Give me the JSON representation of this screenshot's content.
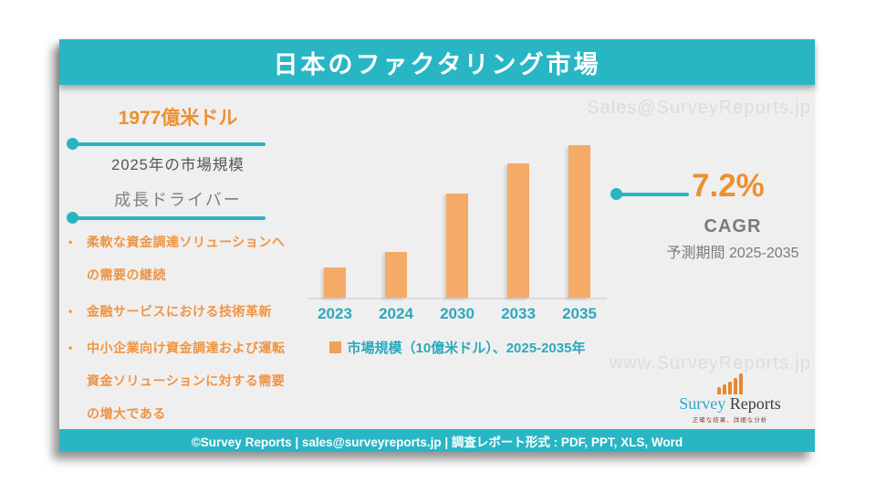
{
  "theme": {
    "teal": "#29b6c4",
    "orange_text": "#ed9030",
    "orange_bullet": "#ef9443",
    "bar_color": "#f4ab67",
    "gray_text": "#7a7a7a",
    "dark_text": "#565656",
    "watermark_color": "#d9dce2",
    "slide_bg": "#f0efef"
  },
  "header": {
    "title": "日本のファクタリング市場"
  },
  "watermarks": {
    "top": "Sales@SurveyReports.jp",
    "bottom": "www.SurveyReports.jp"
  },
  "left_panel": {
    "market_value": "1977億米ドル",
    "market_caption": "2025年の市場規模",
    "drivers_heading": "成長ドライバー",
    "bullet_char": "•",
    "drivers": [
      {
        "lines": [
          "柔軟な資金調達ソリューションへ",
          "の需要の継続"
        ]
      },
      {
        "lines": [
          "金融サービスにおける技術革新"
        ]
      },
      {
        "lines": [
          "中小企業向け資金調達および運転",
          "資金ソリューションに対する需要",
          "の増大である"
        ]
      }
    ]
  },
  "cagr": {
    "value": "7.2%",
    "label": "CAGR",
    "period": "予測期間 2025-2035"
  },
  "chart_data": {
    "type": "bar",
    "categories": [
      "2023",
      "2024",
      "2030",
      "2033",
      "2035"
    ],
    "values": [
      20,
      30,
      68,
      88,
      100
    ],
    "values_note": "y-axis unlabeled in source; values estimated as % of tallest bar height",
    "series_name": "市場規模（10億米ドル）",
    "legend": "市場規模（10億米ドル）、2025-2035年",
    "title": "",
    "xlabel": "",
    "ylabel": "市場規模（10億米ドル）",
    "ylim": [
      0,
      100
    ],
    "grid": false,
    "legend_position": "bottom",
    "bar_color": "#f4ab67",
    "referenced_values": {
      "market_size_2025": "1977億米ドル",
      "cagr": "7.2%",
      "forecast_period": "2025-2035"
    }
  },
  "logo": {
    "brand_first": "Survey",
    "brand_second": " Reports",
    "tagline": "正確な結果、詳細な分析"
  },
  "footer": {
    "text": "©Survey Reports | sales@surveyreports.jp |  調査レポート形式 : PDF, PPT, XLS, Word"
  }
}
